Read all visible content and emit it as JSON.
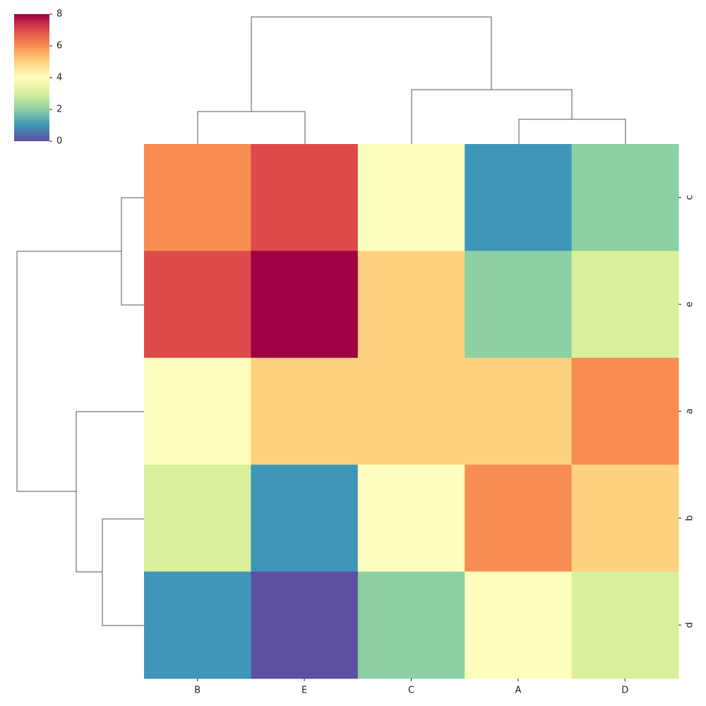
{
  "chart_data": {
    "type": "heatmap",
    "x_categories": [
      "B",
      "E",
      "C",
      "A",
      "D"
    ],
    "y_categories": [
      "c",
      "e",
      "a",
      "b",
      "d"
    ],
    "values": [
      [
        6,
        7,
        4,
        1,
        2
      ],
      [
        7,
        8,
        5,
        2,
        3
      ],
      [
        4,
        5,
        5,
        5,
        6
      ],
      [
        3,
        1,
        4,
        6,
        5
      ],
      [
        1,
        0,
        2,
        4,
        3
      ]
    ],
    "colors": [
      "#5e4fa2",
      "#3f96b7",
      "#8cd0a4",
      "#d8ef9b",
      "#fefebe",
      "#fed27f",
      "#f88d51",
      "#de4a4c",
      "#9e0142"
    ],
    "clim": [
      0,
      8
    ],
    "cticks": [
      0,
      2,
      4,
      6,
      8
    ]
  }
}
